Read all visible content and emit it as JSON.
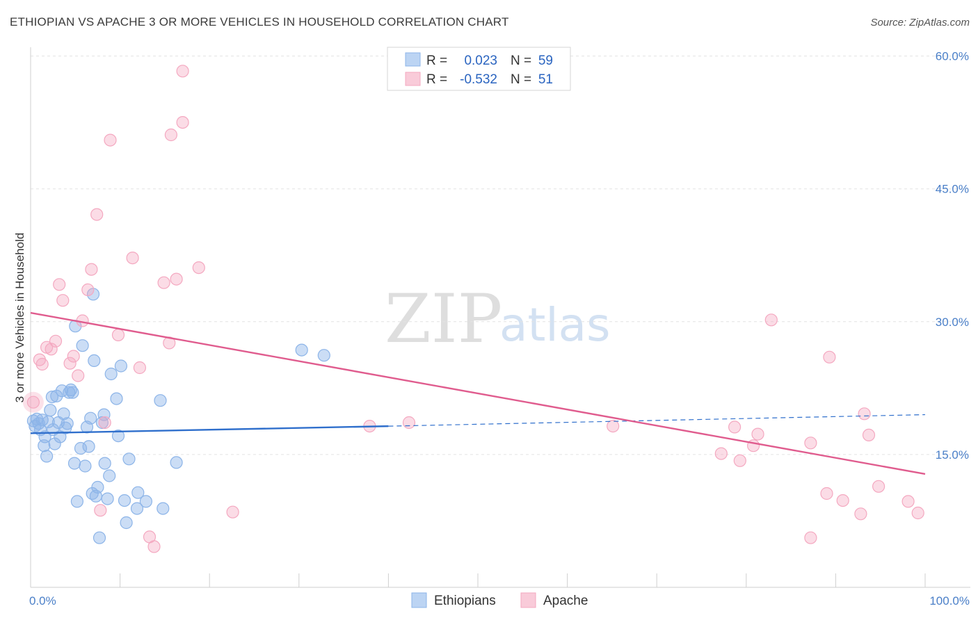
{
  "header": {
    "title": "ETHIOPIAN VS APACHE 3 OR MORE VEHICLES IN HOUSEHOLD CORRELATION CHART",
    "source": "Source: ZipAtlas.com"
  },
  "watermark": {
    "zip": "ZIP",
    "atlas": "atlas"
  },
  "chart_data": {
    "type": "scatter",
    "title": "ETHIOPIAN VS APACHE 3 OR MORE VEHICLES IN HOUSEHOLD CORRELATION CHART",
    "xlabel": "",
    "ylabel": "3 or more Vehicles in Household",
    "xlim": [
      0,
      100
    ],
    "ylim": [
      0,
      63
    ],
    "x_tick_labels": [
      "0.0%",
      "100.0%"
    ],
    "y_ticks": [
      15,
      30,
      45,
      60
    ],
    "y_tick_labels": [
      "15.0%",
      "30.0%",
      "45.0%",
      "60.0%"
    ],
    "grid": true,
    "legend": {
      "placement": "top-center",
      "entries": [
        {
          "r_label": "R =",
          "r_value": "0.023",
          "n_label": "N =",
          "n_value": "59"
        },
        {
          "r_label": "R =",
          "r_value": "-0.532",
          "n_label": "N =",
          "n_value": "51"
        }
      ]
    },
    "series": [
      {
        "name": "Ethiopians",
        "color": "#8cb4e8",
        "line_color": "#2f6fcc",
        "trend": {
          "x": [
            0,
            40,
            100
          ],
          "y": [
            17.4,
            18.2,
            19.5
          ],
          "solid_until": 40
        },
        "points": [
          [
            0.3,
            18.8
          ],
          [
            0.5,
            18.2
          ],
          [
            0.7,
            19.0
          ],
          [
            0.9,
            18.5
          ],
          [
            1.1,
            17.8
          ],
          [
            1.3,
            18.9
          ],
          [
            1.5,
            16.0
          ],
          [
            1.6,
            17.0
          ],
          [
            1.8,
            14.8
          ],
          [
            2.0,
            18.7
          ],
          [
            2.2,
            20.0
          ],
          [
            2.4,
            21.5
          ],
          [
            2.5,
            17.8
          ],
          [
            2.7,
            16.2
          ],
          [
            2.9,
            21.6
          ],
          [
            3.1,
            18.6
          ],
          [
            3.3,
            17.0
          ],
          [
            3.5,
            22.2
          ],
          [
            3.7,
            19.6
          ],
          [
            3.9,
            18.0
          ],
          [
            4.1,
            18.5
          ],
          [
            4.3,
            22.0
          ],
          [
            4.5,
            22.3
          ],
          [
            4.7,
            22.0
          ],
          [
            4.9,
            14.0
          ],
          [
            5.0,
            29.5
          ],
          [
            5.2,
            9.7
          ],
          [
            5.6,
            15.7
          ],
          [
            5.8,
            27.3
          ],
          [
            6.1,
            13.7
          ],
          [
            6.3,
            18.1
          ],
          [
            6.5,
            15.9
          ],
          [
            6.7,
            19.1
          ],
          [
            6.9,
            10.6
          ],
          [
            7.0,
            33.1
          ],
          [
            7.1,
            25.6
          ],
          [
            7.3,
            10.3
          ],
          [
            7.5,
            11.3
          ],
          [
            7.7,
            5.6
          ],
          [
            8.0,
            18.6
          ],
          [
            8.2,
            19.5
          ],
          [
            8.3,
            14.0
          ],
          [
            8.6,
            10.0
          ],
          [
            8.8,
            12.6
          ],
          [
            9.0,
            24.1
          ],
          [
            9.6,
            21.3
          ],
          [
            9.8,
            17.1
          ],
          [
            10.1,
            25.0
          ],
          [
            10.5,
            9.8
          ],
          [
            10.7,
            7.3
          ],
          [
            11.0,
            14.5
          ],
          [
            11.9,
            8.9
          ],
          [
            12.0,
            10.7
          ],
          [
            12.9,
            9.7
          ],
          [
            14.5,
            21.1
          ],
          [
            14.8,
            8.9
          ],
          [
            16.3,
            14.1
          ],
          [
            30.3,
            26.8
          ],
          [
            32.8,
            26.2
          ]
        ]
      },
      {
        "name": "Apache",
        "color": "#f4a8c0",
        "line_color": "#e05c8e",
        "trend": {
          "x": [
            0,
            100
          ],
          "y": [
            31.0,
            12.8
          ],
          "solid_until": 100
        },
        "points": [
          [
            0.3,
            20.9
          ],
          [
            1.0,
            25.7
          ],
          [
            1.3,
            25.2
          ],
          [
            1.8,
            27.1
          ],
          [
            2.3,
            26.9
          ],
          [
            2.8,
            27.8
          ],
          [
            3.2,
            34.2
          ],
          [
            3.6,
            32.4
          ],
          [
            4.4,
            25.3
          ],
          [
            4.8,
            26.1
          ],
          [
            5.3,
            23.9
          ],
          [
            5.8,
            30.1
          ],
          [
            6.4,
            33.6
          ],
          [
            6.8,
            35.9
          ],
          [
            7.4,
            42.1
          ],
          [
            7.8,
            8.7
          ],
          [
            8.3,
            18.6
          ],
          [
            8.9,
            50.5
          ],
          [
            9.8,
            28.5
          ],
          [
            11.4,
            37.2
          ],
          [
            12.2,
            24.8
          ],
          [
            13.3,
            5.7
          ],
          [
            13.8,
            4.6
          ],
          [
            14.9,
            34.4
          ],
          [
            15.5,
            27.6
          ],
          [
            15.7,
            51.1
          ],
          [
            16.3,
            34.8
          ],
          [
            17.0,
            58.3
          ],
          [
            17.0,
            52.5
          ],
          [
            18.8,
            36.1
          ],
          [
            22.6,
            8.5
          ],
          [
            37.9,
            18.2
          ],
          [
            42.3,
            18.6
          ],
          [
            65.1,
            18.2
          ],
          [
            77.2,
            15.1
          ],
          [
            78.7,
            18.1
          ],
          [
            79.3,
            14.3
          ],
          [
            80.8,
            16.0
          ],
          [
            81.3,
            17.3
          ],
          [
            82.8,
            30.2
          ],
          [
            87.2,
            16.3
          ],
          [
            87.2,
            5.6
          ],
          [
            89.0,
            10.6
          ],
          [
            89.3,
            26.0
          ],
          [
            90.8,
            9.8
          ],
          [
            92.8,
            8.3
          ],
          [
            93.2,
            19.6
          ],
          [
            93.7,
            17.2
          ],
          [
            94.8,
            11.4
          ],
          [
            98.1,
            9.7
          ],
          [
            99.2,
            8.4
          ]
        ]
      }
    ]
  }
}
